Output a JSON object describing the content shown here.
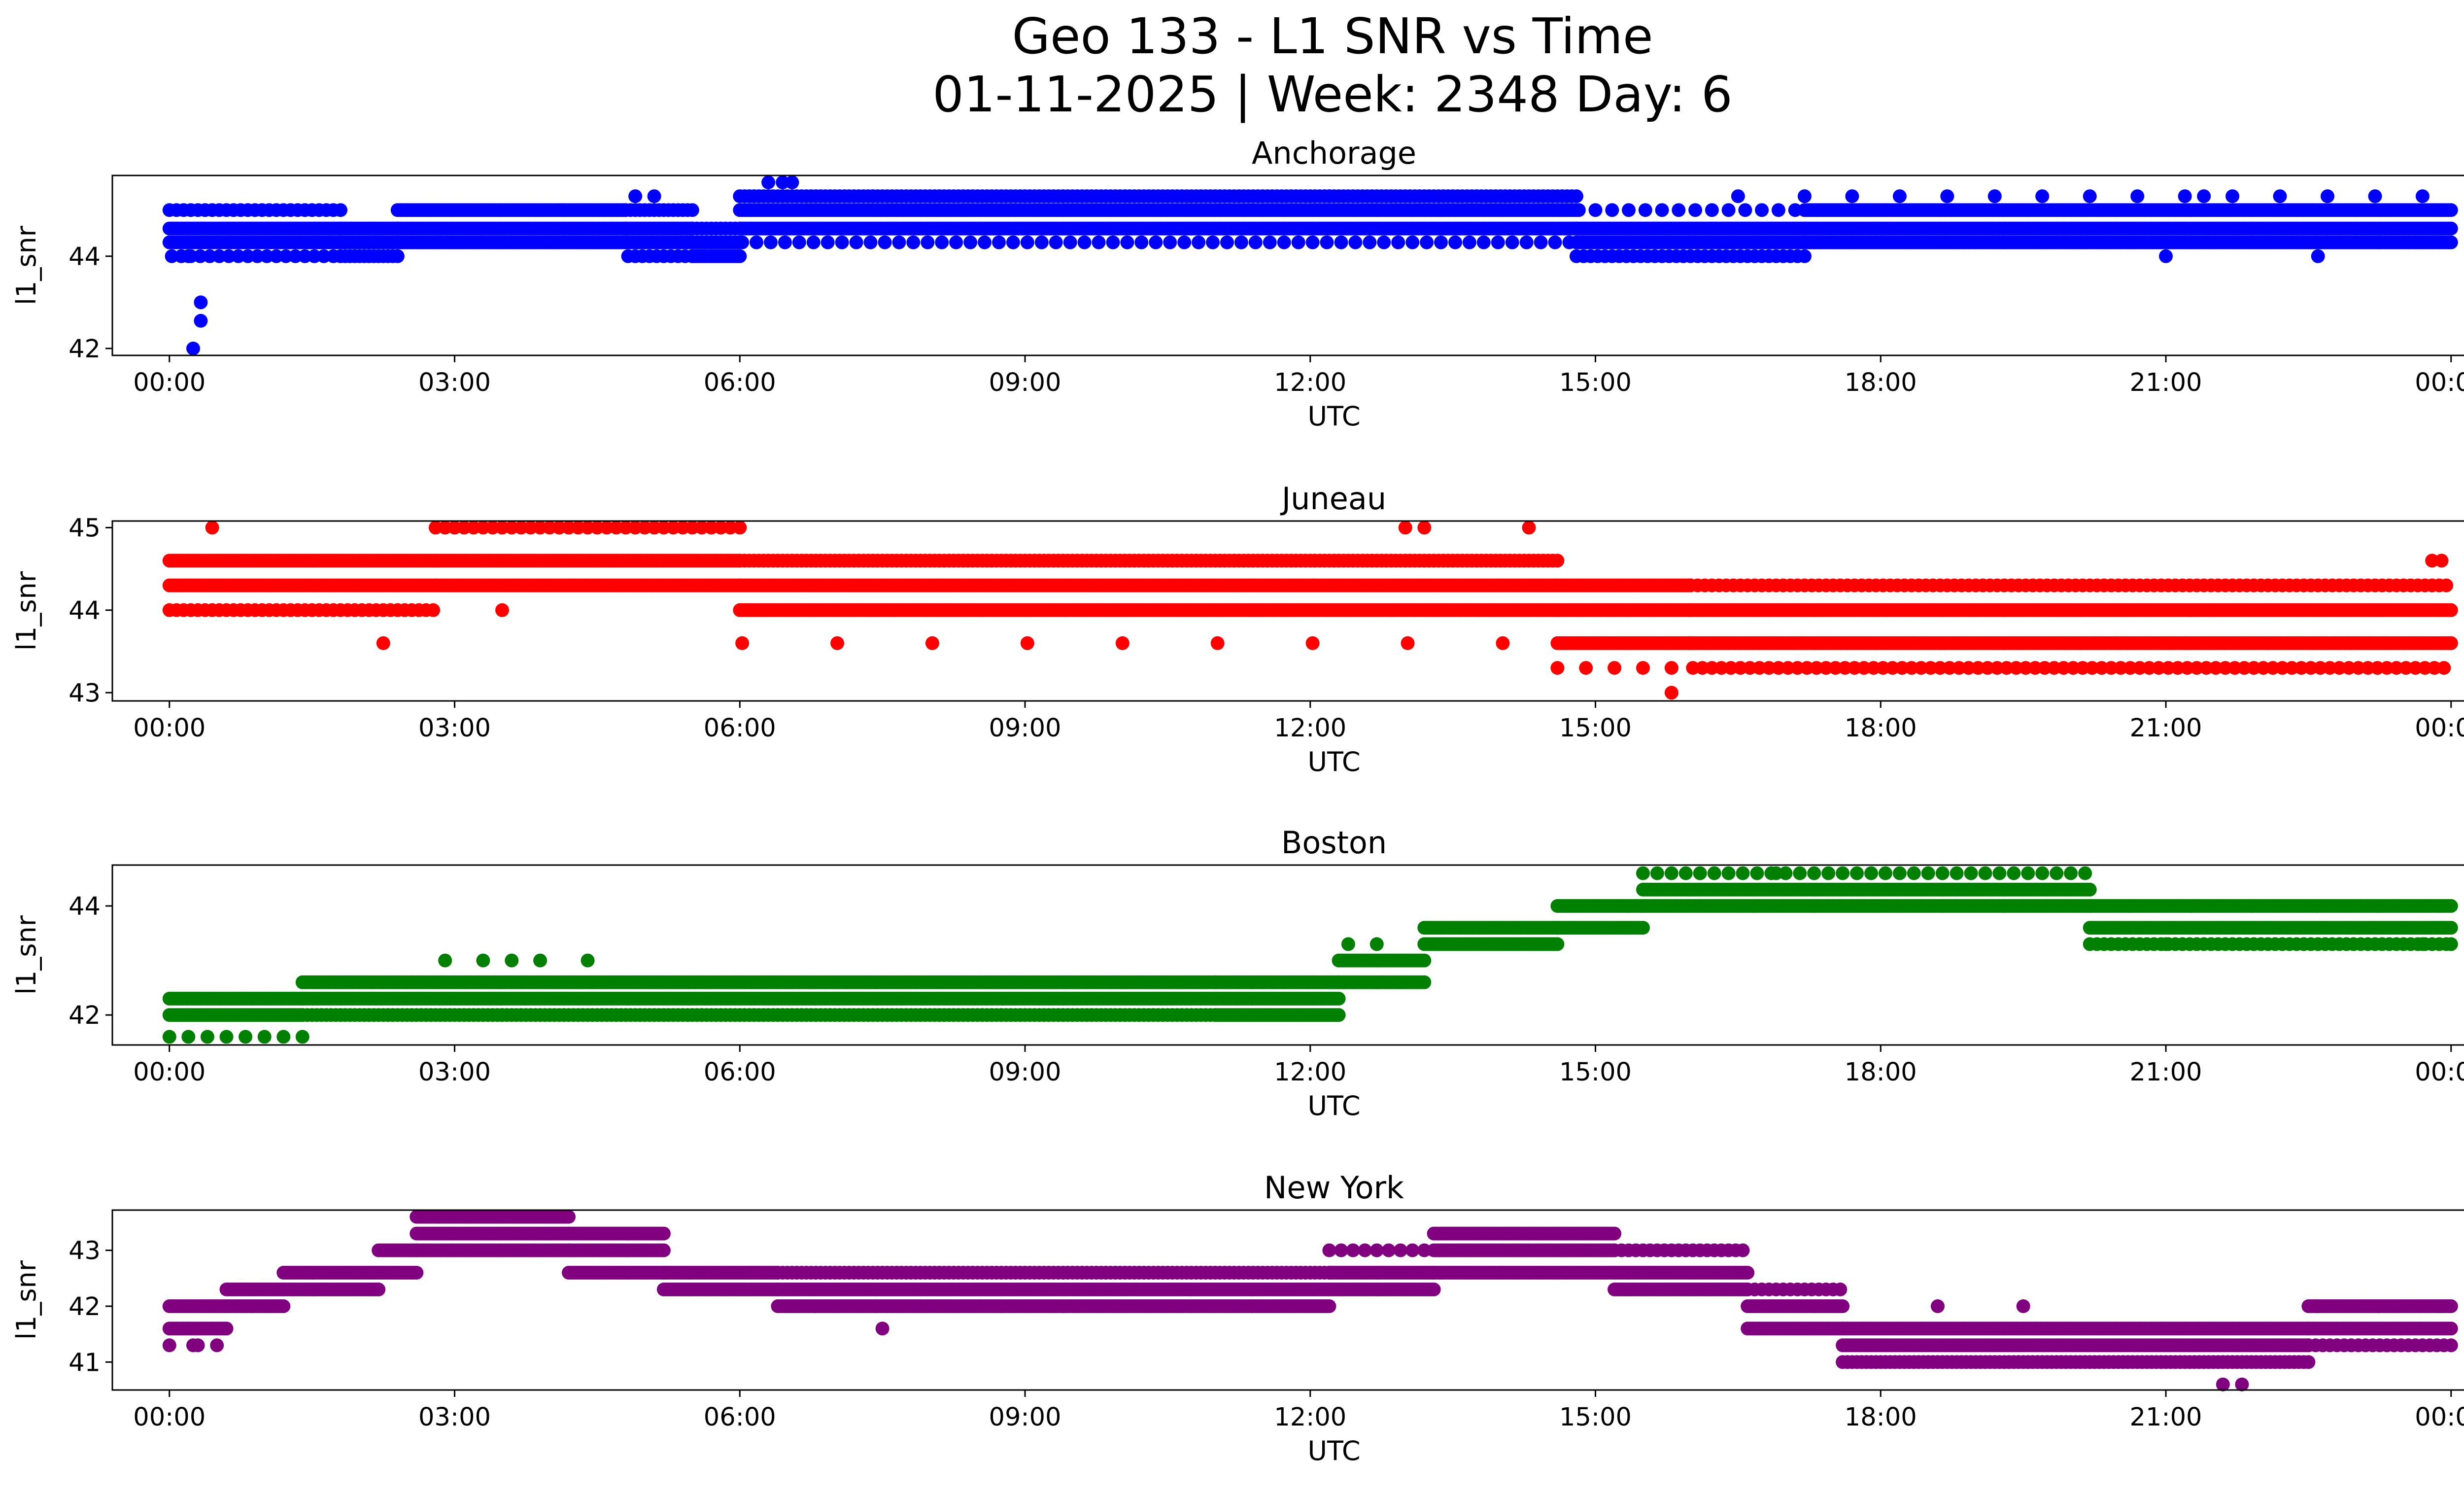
{
  "figure": {
    "title_line1": "Geo 133 - L1 SNR vs Time",
    "title_line2": "01-11-2025 | Week: 2348 Day: 6"
  },
  "chart_data": [
    {
      "type": "scatter",
      "title": "Anchorage",
      "xlabel": "UTC",
      "ylabel": "l1_snr",
      "color": "#0000ff",
      "x_ticks": [
        "00:00",
        "03:00",
        "06:00",
        "09:00",
        "12:00",
        "15:00",
        "18:00",
        "21:00",
        "00:00"
      ],
      "y_ticks": [
        42,
        44
      ],
      "xlim": [
        -0.6,
        25.1
      ],
      "ylim": [
        41.85,
        45.75
      ],
      "point_step_hours": 0.025,
      "segments": [
        {
          "from": 0.0,
          "to": 1.8,
          "values": [
            44.3,
            44.6
          ],
          "top_value": 45.0,
          "top_every": 3,
          "low_value": 44.0,
          "low_every": 4
        },
        {
          "from": 1.8,
          "to": 2.4,
          "values": [
            44.3,
            44.6
          ],
          "top_value": 44.0,
          "top_every": 2
        },
        {
          "from": 2.4,
          "to": 4.8,
          "values": [
            44.3,
            44.6
          ],
          "top_value": 45.0,
          "top_every": 1
        },
        {
          "from": 4.8,
          "to": 5.5,
          "values": [
            44.3,
            44.6
          ],
          "top_value": 45.0,
          "top_every": 2,
          "low_value": 44.0,
          "low_every": 3
        },
        {
          "from": 5.5,
          "to": 6.0,
          "values": [
            44.0,
            44.3
          ],
          "top_value": 44.6,
          "top_every": 2
        },
        {
          "from": 6.0,
          "to": 14.8,
          "values": [
            44.6,
            45.0
          ],
          "top_value": 45.3,
          "top_every": 2,
          "low_value": 44.3,
          "low_every": 6
        },
        {
          "from": 14.8,
          "to": 17.2,
          "values": [
            44.3,
            44.6
          ],
          "top_value": 44.0,
          "top_every": 3,
          "low_value": 45.0,
          "low_every": 7
        },
        {
          "from": 17.2,
          "to": 24.0,
          "values": [
            44.3,
            44.6,
            45.0
          ],
          "top_value": 45.3,
          "top_every": 20
        }
      ],
      "extra_points": [
        {
          "x": 0.25,
          "y": 42.0
        },
        {
          "x": 0.33,
          "y": 42.6
        },
        {
          "x": 0.33,
          "y": 43.0
        },
        {
          "x": 0.2,
          "y": 44.0
        },
        {
          "x": 6.3,
          "y": 45.6
        },
        {
          "x": 6.45,
          "y": 45.6
        },
        {
          "x": 6.55,
          "y": 45.6
        },
        {
          "x": 4.9,
          "y": 45.3
        },
        {
          "x": 5.1,
          "y": 45.3
        },
        {
          "x": 7.4,
          "y": 45.3
        },
        {
          "x": 12.2,
          "y": 45.3
        },
        {
          "x": 16.5,
          "y": 45.3
        },
        {
          "x": 21.4,
          "y": 45.3
        },
        {
          "x": 21.0,
          "y": 44.0
        },
        {
          "x": 22.6,
          "y": 44.0
        }
      ]
    },
    {
      "type": "scatter",
      "title": "Juneau",
      "xlabel": "UTC",
      "ylabel": "l1_snr",
      "color": "#ff0000",
      "x_ticks": [
        "00:00",
        "03:00",
        "06:00",
        "09:00",
        "12:00",
        "15:00",
        "18:00",
        "21:00",
        "00:00"
      ],
      "y_ticks": [
        43,
        44,
        45
      ],
      "xlim": [
        -0.6,
        25.1
      ],
      "ylim": [
        42.9,
        45.08
      ],
      "point_step_hours": 0.025,
      "segments": [
        {
          "from": 0.0,
          "to": 2.8,
          "values": [
            44.3,
            44.6
          ],
          "top_value": 44.0,
          "top_every": 3
        },
        {
          "from": 2.8,
          "to": 6.0,
          "values": [
            44.3,
            44.6
          ],
          "top_value": 45.0,
          "top_every": 4
        },
        {
          "from": 6.0,
          "to": 14.6,
          "values": [
            44.0,
            44.3
          ],
          "top_value": 44.6,
          "top_every": 2,
          "low_value": 43.6,
          "low_every": 40
        },
        {
          "from": 14.6,
          "to": 16.0,
          "values": [
            43.6,
            44.0,
            44.3
          ],
          "top_value": 43.3,
          "top_every": 12
        },
        {
          "from": 16.0,
          "to": 24.0,
          "values": [
            43.6,
            44.0
          ],
          "top_value": 44.3,
          "top_every": 3,
          "low_value": 43.3,
          "low_every": 4
        }
      ],
      "extra_points": [
        {
          "x": 0.45,
          "y": 45.0
        },
        {
          "x": 2.25,
          "y": 43.6
        },
        {
          "x": 3.5,
          "y": 44.0
        },
        {
          "x": 13.0,
          "y": 45.0
        },
        {
          "x": 13.2,
          "y": 45.0
        },
        {
          "x": 14.3,
          "y": 45.0
        },
        {
          "x": 15.8,
          "y": 43.0
        },
        {
          "x": 23.8,
          "y": 44.6
        },
        {
          "x": 23.9,
          "y": 44.6
        },
        {
          "x": 24.0,
          "y": 43.6
        }
      ]
    },
    {
      "type": "scatter",
      "title": "Boston",
      "xlabel": "UTC",
      "ylabel": "l1_snr",
      "color": "#008000",
      "x_ticks": [
        "00:00",
        "03:00",
        "06:00",
        "09:00",
        "12:00",
        "15:00",
        "18:00",
        "21:00",
        "00:00"
      ],
      "y_ticks": [
        42,
        44
      ],
      "xlim": [
        -0.6,
        25.1
      ],
      "ylim": [
        41.45,
        44.75
      ],
      "point_step_hours": 0.025,
      "segments": [
        {
          "from": 0.0,
          "to": 1.4,
          "values": [
            42.0,
            42.3
          ],
          "top_value": 41.6,
          "top_every": 8
        },
        {
          "from": 1.4,
          "to": 11.0,
          "values": [
            42.3,
            42.6
          ],
          "top_value": 42.0,
          "top_every": 2
        },
        {
          "from": 11.0,
          "to": 12.3,
          "values": [
            42.0,
            42.3,
            42.6
          ]
        },
        {
          "from": 12.3,
          "to": 13.2,
          "values": [
            42.6,
            43.0
          ]
        },
        {
          "from": 13.2,
          "to": 14.6,
          "values": [
            43.3,
            43.6
          ]
        },
        {
          "from": 14.6,
          "to": 15.5,
          "values": [
            43.6,
            44.0
          ]
        },
        {
          "from": 15.5,
          "to": 20.2,
          "values": [
            44.0,
            44.3
          ],
          "top_value": 44.6,
          "top_every": 6
        },
        {
          "from": 20.2,
          "to": 24.0,
          "values": [
            43.6,
            44.0
          ],
          "top_value": 43.3,
          "top_every": 3
        }
      ],
      "extra_points": [
        {
          "x": 2.9,
          "y": 43.0
        },
        {
          "x": 3.3,
          "y": 43.0
        },
        {
          "x": 3.6,
          "y": 43.0
        },
        {
          "x": 3.9,
          "y": 43.0
        },
        {
          "x": 4.4,
          "y": 43.0
        },
        {
          "x": 12.4,
          "y": 43.3
        },
        {
          "x": 12.7,
          "y": 43.3
        },
        {
          "x": 16.1,
          "y": 44.6
        },
        {
          "x": 16.9,
          "y": 44.6
        },
        {
          "x": 21.0,
          "y": 43.3
        },
        {
          "x": 23.7,
          "y": 43.3
        },
        {
          "x": 24.0,
          "y": 43.3
        }
      ]
    },
    {
      "type": "scatter",
      "title": "New York",
      "xlabel": "UTC",
      "ylabel": "l1_snr",
      "color": "#800080",
      "x_ticks": [
        "00:00",
        "03:00",
        "06:00",
        "09:00",
        "12:00",
        "15:00",
        "18:00",
        "21:00",
        "00:00"
      ],
      "y_ticks": [
        41,
        42,
        43
      ],
      "xlim": [
        -0.6,
        25.1
      ],
      "ylim": [
        40.5,
        43.72
      ],
      "point_step_hours": 0.025,
      "segments": [
        {
          "from": 0.0,
          "to": 0.6,
          "values": [
            41.6,
            42.0
          ],
          "top_value": 41.3,
          "top_every": 10
        },
        {
          "from": 0.6,
          "to": 1.2,
          "values": [
            42.0,
            42.3
          ]
        },
        {
          "from": 1.2,
          "to": 2.2,
          "values": [
            42.3,
            42.6
          ]
        },
        {
          "from": 2.2,
          "to": 2.6,
          "values": [
            42.6,
            43.0
          ]
        },
        {
          "from": 2.6,
          "to": 4.2,
          "values": [
            43.0,
            43.3,
            43.6
          ]
        },
        {
          "from": 4.2,
          "to": 5.2,
          "values": [
            42.6,
            43.0,
            43.3
          ]
        },
        {
          "from": 5.2,
          "to": 6.4,
          "values": [
            42.3,
            42.6
          ]
        },
        {
          "from": 6.4,
          "to": 12.2,
          "values": [
            42.0,
            42.3
          ],
          "top_value": 42.6,
          "top_every": 2
        },
        {
          "from": 12.2,
          "to": 13.3,
          "values": [
            42.3,
            42.6
          ],
          "top_value": 43.0,
          "top_every": 5
        },
        {
          "from": 13.3,
          "to": 15.2,
          "values": [
            42.6,
            43.0,
            43.3
          ]
        },
        {
          "from": 15.2,
          "to": 16.6,
          "values": [
            42.3,
            42.6
          ],
          "top_value": 43.0,
          "top_every": 3
        },
        {
          "from": 16.6,
          "to": 17.6,
          "values": [
            41.6,
            42.0
          ],
          "top_value": 42.3,
          "top_every": 3
        },
        {
          "from": 17.6,
          "to": 22.5,
          "values": [
            41.3,
            41.6
          ],
          "top_value": 41.0,
          "top_every": 2
        },
        {
          "from": 22.5,
          "to": 24.0,
          "values": [
            41.6,
            42.0
          ],
          "top_value": 41.3,
          "top_every": 3
        }
      ],
      "extra_points": [
        {
          "x": 0.3,
          "y": 41.3
        },
        {
          "x": 7.5,
          "y": 41.6
        },
        {
          "x": 18.6,
          "y": 42.0
        },
        {
          "x": 19.5,
          "y": 42.0
        },
        {
          "x": 21.6,
          "y": 40.6
        },
        {
          "x": 21.8,
          "y": 40.6
        },
        {
          "x": 22.6,
          "y": 42.0
        }
      ]
    }
  ]
}
